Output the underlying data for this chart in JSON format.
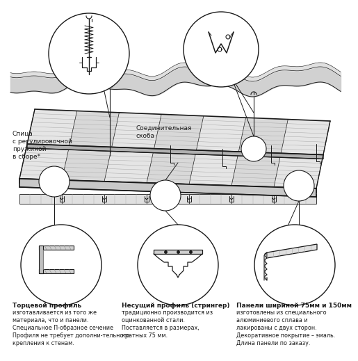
{
  "bg_color": "#ffffff",
  "line_color": "#1a1a1a",
  "circle_fill": "#ffffff",
  "gray_fill": "#d0d0d0",
  "dark_gray": "#888888",
  "light_gray": "#e8e8e8",
  "labels": {
    "spoke": "Спица\nс регулировочной\nпружиной\nв сборе*",
    "clip": "Соединительная\nскоба",
    "end_profile_title": "Торцевой профиль",
    "end_profile_text": "изготавливается из того же\nматериала, что и панели.\nСпециальное П-образное сечение\nПрофиля не требует дополни-тельного\nкрепления к стенам.",
    "carrier_profile_title": "Несущий профиль (стрингер)",
    "carrier_profile_text": "традиционно производится из\nоцинкованной стали.\nПоставляется в размерах,\nкратных 75 мм.",
    "panels_title": "Панели шириной 75мм и 150мм",
    "panels_text": "изготовлены из специального\nалюминиевого сплава и\nлакированы с двух сторон.\nДекоративное покрытие – эмаль.\nДлина панели по заказу."
  }
}
